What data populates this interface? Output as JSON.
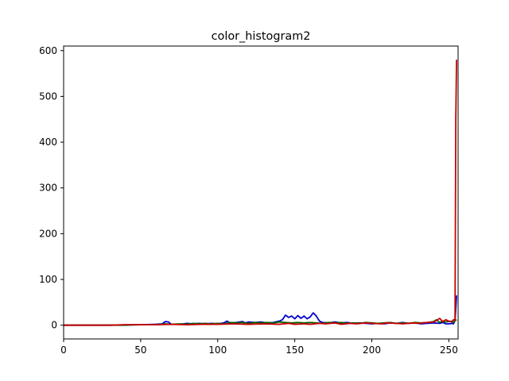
{
  "chart_data": {
    "type": "line",
    "title": "color_histogram2",
    "xlabel": "",
    "ylabel": "",
    "xlim": [
      0,
      256
    ],
    "ylim": [
      -30,
      610
    ],
    "x_ticks": [
      0,
      50,
      100,
      150,
      200,
      250
    ],
    "y_ticks": [
      0,
      100,
      200,
      300,
      400,
      500,
      600
    ],
    "grid": false,
    "legend": "none",
    "series": [
      {
        "color": "#0000cc",
        "points": [
          [
            0,
            0
          ],
          [
            10,
            0
          ],
          [
            20,
            0
          ],
          [
            30,
            0
          ],
          [
            40,
            1
          ],
          [
            50,
            1
          ],
          [
            60,
            2
          ],
          [
            64,
            3
          ],
          [
            66,
            8
          ],
          [
            68,
            7
          ],
          [
            70,
            2
          ],
          [
            76,
            2
          ],
          [
            80,
            4
          ],
          [
            84,
            3
          ],
          [
            88,
            4
          ],
          [
            92,
            3
          ],
          [
            96,
            4
          ],
          [
            100,
            3
          ],
          [
            104,
            5
          ],
          [
            106,
            9
          ],
          [
            108,
            5
          ],
          [
            112,
            6
          ],
          [
            116,
            8
          ],
          [
            118,
            5
          ],
          [
            120,
            7
          ],
          [
            124,
            6
          ],
          [
            128,
            7
          ],
          [
            132,
            5
          ],
          [
            136,
            6
          ],
          [
            140,
            9
          ],
          [
            142,
            12
          ],
          [
            144,
            22
          ],
          [
            146,
            17
          ],
          [
            148,
            20
          ],
          [
            150,
            14
          ],
          [
            152,
            21
          ],
          [
            154,
            15
          ],
          [
            156,
            20
          ],
          [
            158,
            14
          ],
          [
            160,
            18
          ],
          [
            162,
            27
          ],
          [
            164,
            20
          ],
          [
            166,
            9
          ],
          [
            168,
            6
          ],
          [
            172,
            5
          ],
          [
            176,
            7
          ],
          [
            180,
            5
          ],
          [
            184,
            6
          ],
          [
            188,
            4
          ],
          [
            192,
            5
          ],
          [
            196,
            4
          ],
          [
            200,
            3
          ],
          [
            204,
            4
          ],
          [
            208,
            3
          ],
          [
            212,
            5
          ],
          [
            216,
            4
          ],
          [
            220,
            6
          ],
          [
            224,
            4
          ],
          [
            228,
            5
          ],
          [
            232,
            3
          ],
          [
            236,
            4
          ],
          [
            240,
            5
          ],
          [
            244,
            4
          ],
          [
            246,
            6
          ],
          [
            248,
            3
          ],
          [
            250,
            3
          ],
          [
            252,
            4
          ],
          [
            253,
            3
          ],
          [
            254,
            10
          ],
          [
            255,
            65
          ]
        ]
      },
      {
        "color": "#006400",
        "points": [
          [
            0,
            0
          ],
          [
            10,
            0
          ],
          [
            20,
            0
          ],
          [
            30,
            0
          ],
          [
            40,
            0
          ],
          [
            50,
            1
          ],
          [
            60,
            1
          ],
          [
            66,
            3
          ],
          [
            70,
            2
          ],
          [
            76,
            3
          ],
          [
            80,
            2
          ],
          [
            84,
            4
          ],
          [
            88,
            3
          ],
          [
            92,
            4
          ],
          [
            96,
            3
          ],
          [
            100,
            4
          ],
          [
            104,
            3
          ],
          [
            108,
            6
          ],
          [
            112,
            5
          ],
          [
            116,
            6
          ],
          [
            120,
            4
          ],
          [
            124,
            6
          ],
          [
            128,
            5
          ],
          [
            132,
            6
          ],
          [
            136,
            5
          ],
          [
            140,
            7
          ],
          [
            144,
            6
          ],
          [
            148,
            5
          ],
          [
            152,
            6
          ],
          [
            156,
            5
          ],
          [
            160,
            6
          ],
          [
            164,
            5
          ],
          [
            168,
            4
          ],
          [
            172,
            6
          ],
          [
            176,
            5
          ],
          [
            180,
            6
          ],
          [
            184,
            4
          ],
          [
            188,
            5
          ],
          [
            192,
            4
          ],
          [
            196,
            6
          ],
          [
            200,
            5
          ],
          [
            204,
            4
          ],
          [
            208,
            5
          ],
          [
            212,
            6
          ],
          [
            216,
            4
          ],
          [
            220,
            5
          ],
          [
            224,
            4
          ],
          [
            228,
            6
          ],
          [
            232,
            5
          ],
          [
            236,
            6
          ],
          [
            240,
            8
          ],
          [
            242,
            12
          ],
          [
            244,
            6
          ],
          [
            246,
            9
          ],
          [
            248,
            7
          ],
          [
            250,
            8
          ],
          [
            252,
            9
          ],
          [
            253,
            6
          ],
          [
            254,
            10
          ],
          [
            255,
            12
          ]
        ]
      },
      {
        "color": "#cc0000",
        "points": [
          [
            0,
            0
          ],
          [
            10,
            0
          ],
          [
            20,
            0
          ],
          [
            30,
            0
          ],
          [
            40,
            1
          ],
          [
            50,
            1
          ],
          [
            60,
            1
          ],
          [
            70,
            2
          ],
          [
            80,
            1
          ],
          [
            90,
            2
          ],
          [
            100,
            2
          ],
          [
            110,
            3
          ],
          [
            120,
            2
          ],
          [
            130,
            3
          ],
          [
            140,
            2
          ],
          [
            146,
            4
          ],
          [
            150,
            2
          ],
          [
            156,
            3
          ],
          [
            160,
            2
          ],
          [
            166,
            4
          ],
          [
            170,
            3
          ],
          [
            176,
            5
          ],
          [
            180,
            2
          ],
          [
            186,
            4
          ],
          [
            190,
            3
          ],
          [
            196,
            5
          ],
          [
            200,
            4
          ],
          [
            206,
            3
          ],
          [
            210,
            5
          ],
          [
            216,
            4
          ],
          [
            220,
            3
          ],
          [
            226,
            5
          ],
          [
            230,
            4
          ],
          [
            236,
            6
          ],
          [
            240,
            7
          ],
          [
            242,
            10
          ],
          [
            244,
            15
          ],
          [
            246,
            8
          ],
          [
            248,
            12
          ],
          [
            250,
            9
          ],
          [
            252,
            7
          ],
          [
            253,
            12
          ],
          [
            254,
            11
          ],
          [
            254.5,
            450
          ],
          [
            255,
            580
          ]
        ]
      }
    ]
  }
}
